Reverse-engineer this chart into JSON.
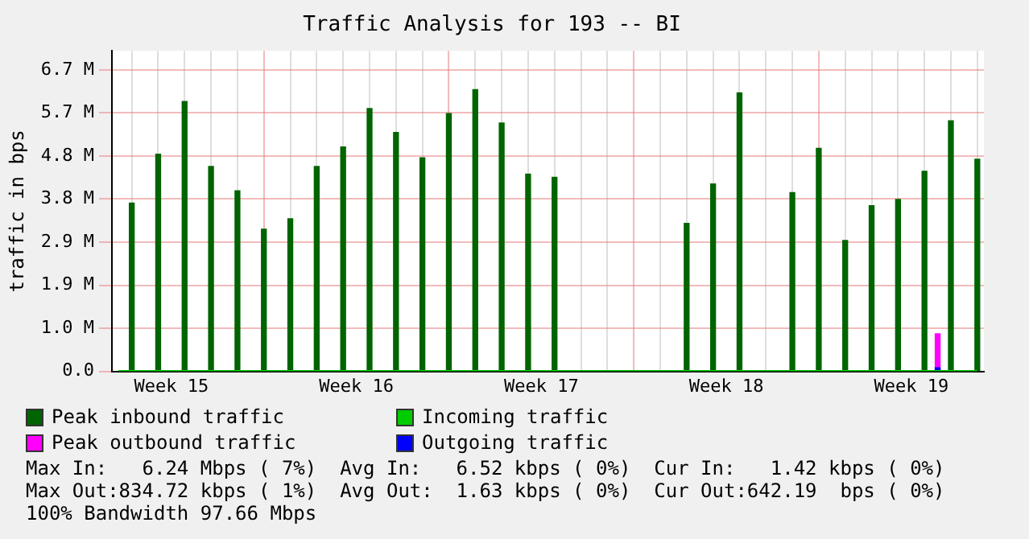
{
  "chart_data": {
    "type": "bar",
    "title": "Traffic Analysis for 193 -- BI",
    "ylabel": "traffic in bps",
    "categories": [
      null,
      null,
      null,
      null,
      "Week 15",
      null,
      null,
      null,
      null,
      null,
      null,
      null,
      null,
      null,
      null,
      null,
      null,
      null,
      "Week 16",
      null,
      null,
      null,
      null,
      null,
      null,
      null,
      null,
      null,
      null,
      null,
      null,
      null,
      "Week 17",
      null,
      null,
      null,
      null,
      null,
      null,
      null,
      null,
      null,
      null,
      null,
      null,
      null,
      "Week 18",
      null,
      null,
      null,
      null,
      null,
      null,
      null,
      null,
      null,
      null,
      null,
      null,
      null,
      "Week 19",
      null,
      null,
      null,
      null,
      null
    ],
    "ylim": [
      0,
      7.1
    ],
    "yticks": [
      {
        "value": 0,
        "label": "0.0"
      },
      {
        "value": 0.954,
        "label": "1.0 M"
      },
      {
        "value": 1.908,
        "label": "1.9 M"
      },
      {
        "value": 2.862,
        "label": "2.9 M"
      },
      {
        "value": 3.816,
        "label": "3.8 M"
      },
      {
        "value": 4.77,
        "label": "4.8 M"
      },
      {
        "value": 5.724,
        "label": "5.7 M"
      },
      {
        "value": 6.678,
        "label": "6.7 M"
      }
    ],
    "grid": true,
    "legend": "bottom",
    "series": [
      {
        "name": "Peak inbound traffic",
        "color": "#006400",
        "values": [
          null,
          3.73,
          null,
          4.81,
          null,
          5.98,
          null,
          4.54,
          null,
          4.0,
          null,
          3.15,
          null,
          3.38,
          null,
          4.54,
          null,
          4.97,
          null,
          5.82,
          null,
          5.29,
          null,
          4.73,
          null,
          5.71,
          null,
          6.24,
          null,
          5.5,
          null,
          4.37,
          null,
          4.3,
          null,
          null,
          null,
          null,
          null,
          null,
          null,
          null,
          null,
          3.28,
          null,
          4.15,
          null,
          6.17,
          null,
          null,
          null,
          3.96,
          null,
          4.94,
          null,
          2.9,
          null,
          3.67,
          null,
          3.81,
          null,
          4.43,
          null,
          5.55,
          null,
          4.7
        ]
      },
      {
        "name": "Incoming traffic",
        "color": "#00cc00",
        "type": "line",
        "values": [
          0,
          0,
          0,
          0,
          0,
          0,
          0,
          0,
          0,
          0,
          0,
          0,
          0,
          0,
          0,
          0,
          0,
          0,
          0,
          0,
          0,
          0,
          0,
          0,
          0,
          0,
          0,
          0,
          0,
          0,
          0,
          0,
          0,
          0,
          0,
          0,
          0,
          0,
          0,
          0,
          0,
          0,
          0,
          0,
          0,
          0,
          0,
          0,
          0,
          0,
          0,
          0,
          0,
          0,
          0,
          0,
          0,
          0,
          0,
          0,
          0,
          0,
          0,
          0,
          0,
          0
        ]
      },
      {
        "name": "Peak outbound traffic",
        "color": "#ff00ff",
        "values": [
          null,
          null,
          null,
          null,
          null,
          null,
          null,
          null,
          null,
          null,
          null,
          null,
          null,
          null,
          null,
          null,
          null,
          null,
          null,
          null,
          null,
          null,
          null,
          null,
          null,
          null,
          null,
          null,
          null,
          null,
          null,
          null,
          null,
          null,
          null,
          null,
          null,
          null,
          null,
          null,
          null,
          null,
          null,
          null,
          null,
          null,
          null,
          null,
          null,
          null,
          null,
          null,
          null,
          null,
          null,
          null,
          null,
          null,
          null,
          null,
          null,
          null,
          0.83,
          null,
          null,
          null
        ]
      },
      {
        "name": "Outgoing traffic",
        "color": "#0000ff",
        "values": [
          null,
          null,
          null,
          null,
          null,
          null,
          null,
          null,
          null,
          null,
          null,
          null,
          null,
          null,
          null,
          null,
          null,
          null,
          null,
          null,
          null,
          null,
          null,
          null,
          null,
          null,
          null,
          null,
          null,
          null,
          null,
          null,
          null,
          null,
          null,
          null,
          null,
          null,
          null,
          null,
          null,
          null,
          null,
          null,
          null,
          null,
          null,
          null,
          null,
          null,
          null,
          null,
          null,
          null,
          null,
          null,
          null,
          null,
          null,
          null,
          null,
          null,
          0.08,
          null,
          null,
          null
        ]
      }
    ],
    "annotations": [
      "Max In:   6.24 Mbps ( 7%)  Avg In:   6.52 kbps ( 0%)  Cur In:   1.42 kbps ( 0%)",
      "Max Out:834.72 kbps ( 1%)  Avg Out:  1.63 kbps ( 0%)  Cur Out:642.19  bps ( 0%)",
      "100% Bandwidth 97.66 Mbps"
    ]
  }
}
